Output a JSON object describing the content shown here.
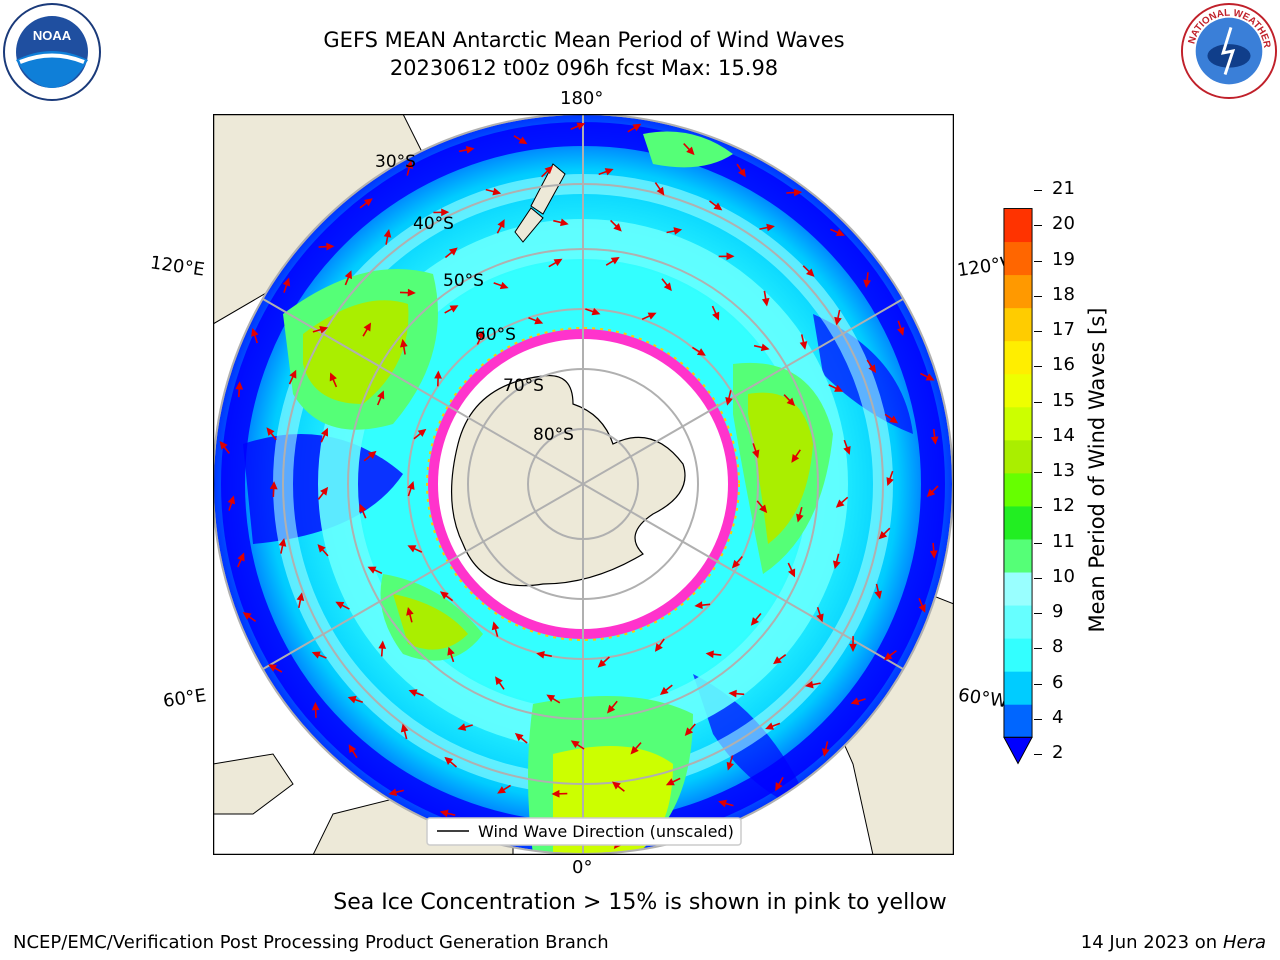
{
  "title": {
    "line1": "GEFS MEAN Antarctic Mean Period of Wind Waves",
    "line2": "20230612 t00z 096h fcst   Max: 15.98"
  },
  "map": {
    "projection": "south-polar-stereographic",
    "lon_labels": {
      "top": "180°",
      "bottom": "0°",
      "left_upper": "120°E",
      "left_lower": "60°E",
      "right_upper": "120°W",
      "right_lower": "60°W"
    },
    "lat_labels": [
      "30°S",
      "40°S",
      "50°S",
      "60°S",
      "70°S",
      "80°S"
    ],
    "legend": "Wind Wave Direction (unscaled)"
  },
  "colorbar": {
    "label": "Mean Period of Wind Waves [s]",
    "ticks": [
      "2",
      "4",
      "6",
      "8",
      "9",
      "10",
      "11",
      "12",
      "13",
      "14",
      "15",
      "16",
      "17",
      "18",
      "19",
      "20",
      "21"
    ],
    "colors": [
      "#0066ff",
      "#00ccff",
      "#33ffff",
      "#66ffff",
      "#99ffff",
      "#55ff77",
      "#22ee22",
      "#66ff00",
      "#aaee00",
      "#ccff00",
      "#eeff00",
      "#ffee00",
      "#ffcc00",
      "#ff9900",
      "#ff6600",
      "#ff3300",
      "#ff0000"
    ],
    "extend_color": "#0000ff"
  },
  "notes": {
    "sea_ice": "Sea Ice Concentration > 15% is shown in pink to yellow",
    "footer_left": "NCEP/EMC/Verification Post Processing Product Generation Branch",
    "footer_date": "14 Jun 2023 on",
    "footer_machine": "Hera"
  },
  "logos": {
    "left": "NOAA",
    "right": "NATIONAL WEATHER SERVICE"
  }
}
